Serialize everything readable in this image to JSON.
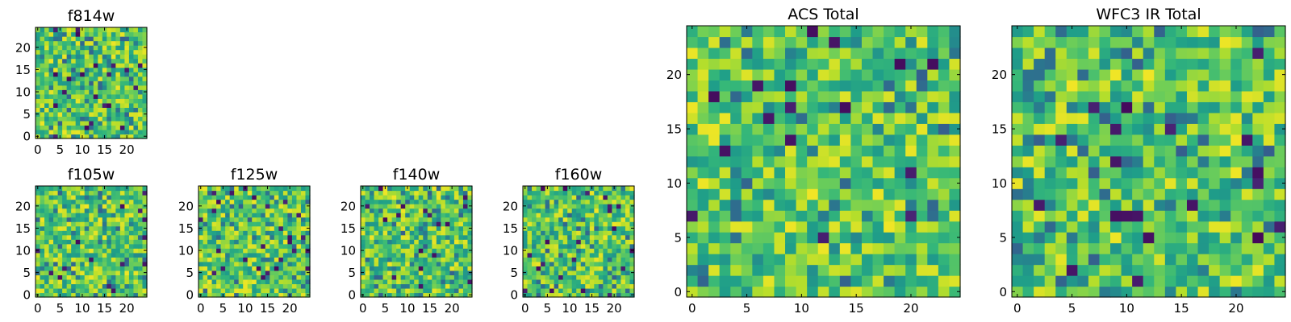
{
  "chart_data": [
    {
      "type": "heatmap",
      "title": "f814w",
      "size": 25,
      "seed": 11,
      "colormap": "viridis",
      "xticks": [
        0,
        5,
        10,
        15,
        20
      ],
      "yticks": [
        0,
        5,
        10,
        15,
        20
      ],
      "xlim": [
        -0.5,
        24.5
      ],
      "ylim": [
        -0.5,
        24.5
      ]
    },
    {
      "type": "heatmap",
      "title": "f105w",
      "size": 25,
      "seed": 23,
      "colormap": "viridis",
      "xticks": [
        0,
        5,
        10,
        15,
        20
      ],
      "yticks": [
        0,
        5,
        10,
        15,
        20
      ],
      "xlim": [
        -0.5,
        24.5
      ],
      "ylim": [
        -0.5,
        24.5
      ]
    },
    {
      "type": "heatmap",
      "title": "f125w",
      "size": 25,
      "seed": 37,
      "colormap": "viridis",
      "xticks": [
        0,
        5,
        10,
        15,
        20
      ],
      "yticks": [
        0,
        5,
        10,
        15,
        20
      ],
      "xlim": [
        -0.5,
        24.5
      ],
      "ylim": [
        -0.5,
        24.5
      ]
    },
    {
      "type": "heatmap",
      "title": "f140w",
      "size": 25,
      "seed": 41,
      "colormap": "viridis",
      "xticks": [
        0,
        5,
        10,
        15,
        20
      ],
      "yticks": [
        0,
        5,
        10,
        15,
        20
      ],
      "xlim": [
        -0.5,
        24.5
      ],
      "ylim": [
        -0.5,
        24.5
      ]
    },
    {
      "type": "heatmap",
      "title": "f160w",
      "size": 25,
      "seed": 53,
      "colormap": "viridis",
      "xticks": [
        0,
        5,
        10,
        15,
        20
      ],
      "yticks": [
        0,
        5,
        10,
        15,
        20
      ],
      "xlim": [
        -0.5,
        24.5
      ],
      "ylim": [
        -0.5,
        24.5
      ]
    },
    {
      "type": "heatmap",
      "title": "ACS Total",
      "size": 25,
      "seed": 67,
      "colormap": "viridis",
      "xticks": [
        0,
        5,
        10,
        15,
        20
      ],
      "yticks": [
        0,
        5,
        10,
        15,
        20
      ],
      "xlim": [
        -0.5,
        24.5
      ],
      "ylim": [
        -0.5,
        24.5
      ]
    },
    {
      "type": "heatmap",
      "title": "WFC3 IR Total",
      "size": 25,
      "seed": 79,
      "colormap": "viridis",
      "xticks": [
        0,
        5,
        10,
        15,
        20
      ],
      "yticks": [
        0,
        5,
        10,
        15,
        20
      ],
      "xlim": [
        -0.5,
        24.5
      ],
      "ylim": [
        -0.5,
        24.5
      ]
    }
  ]
}
